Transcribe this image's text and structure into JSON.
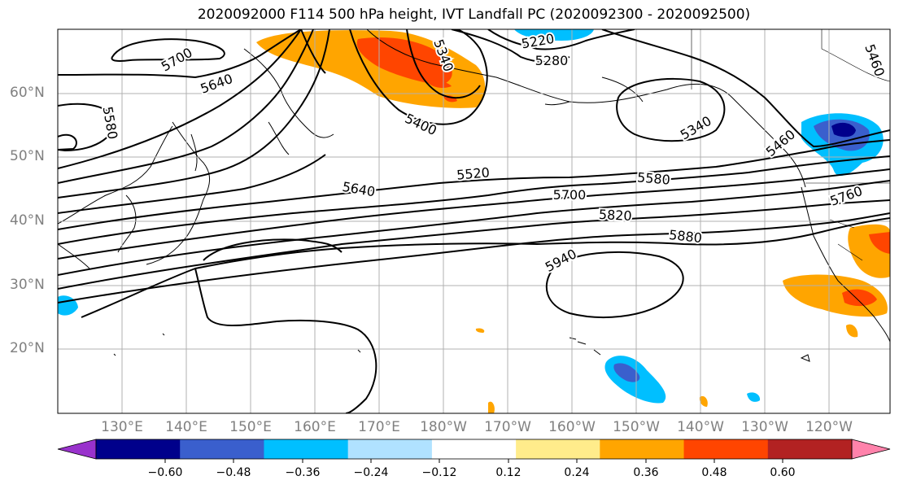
{
  "title": "2020092000 F114 500 hPa height, IVT Landfall PC (2020092300 - 2020092500)",
  "lat_labels": [
    "60°N",
    "50°N",
    "40°N",
    "30°N",
    "20°N"
  ],
  "lon_labels": [
    "130°E",
    "140°E",
    "150°E",
    "160°E",
    "170°E",
    "180°W",
    "170°W",
    "160°W",
    "150°W",
    "140°W",
    "130°W",
    "120°W"
  ],
  "contour_labels": [
    "5700",
    "5640",
    "5580",
    "5220",
    "5280",
    "5340",
    "5400",
    "5340",
    "5460",
    "5460",
    "5520",
    "5580",
    "5640",
    "5700",
    "5760",
    "5820",
    "5880",
    "5940"
  ],
  "colorbar": {
    "ticks": [
      "−0.60",
      "−0.48",
      "−0.36",
      "−0.24",
      "−0.12",
      "0.12",
      "0.24",
      "0.36",
      "0.48",
      "0.60"
    ],
    "colors": [
      "#9932cc",
      "#00008b",
      "#3a5fcd",
      "#00bfff",
      "#b0e2ff",
      "#ffffff",
      "#ffec8b",
      "#ffa500",
      "#ff4500",
      "#b22222",
      "#ff82ab"
    ]
  }
}
